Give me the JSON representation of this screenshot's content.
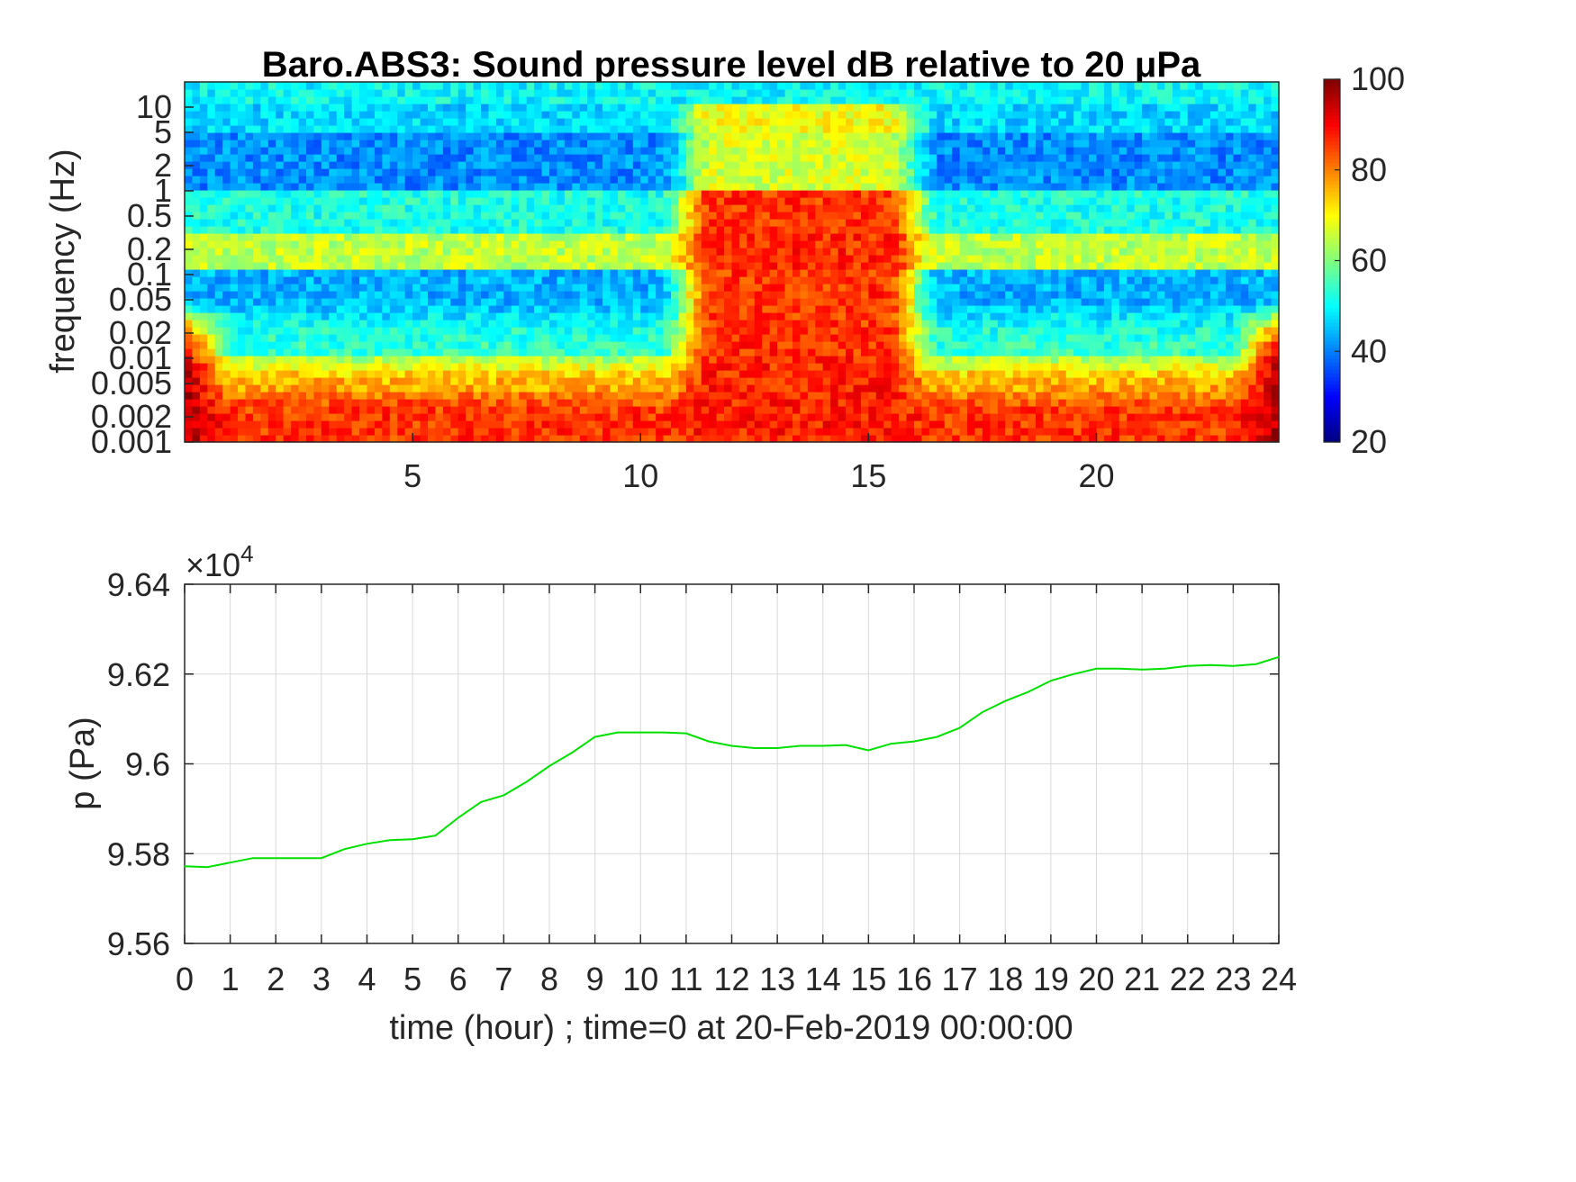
{
  "chart_data": [
    {
      "type": "heatmap",
      "title": "Baro.ABS3: Sound pressure level dB relative to 20 μPa",
      "xlabel": "",
      "ylabel": "frequency (Hz)",
      "xlim": [
        0,
        24
      ],
      "ylim": [
        0.001,
        20
      ],
      "y_scale": "log",
      "x_ticks": [
        5,
        10,
        15,
        20
      ],
      "x_tick_labels": [
        "5",
        "10",
        "15",
        "20"
      ],
      "y_ticks": [
        0.001,
        0.002,
        0.005,
        0.01,
        0.02,
        0.05,
        0.1,
        0.2,
        0.5,
        1,
        2,
        5,
        10
      ],
      "y_tick_labels": [
        "0.001",
        "0.002",
        "0.005",
        "0.01",
        "0.02",
        "0.05",
        "0.1",
        "0.2",
        "0.5",
        "1",
        "2",
        "5",
        "10"
      ],
      "colorbar": {
        "colormap": "jet",
        "range": [
          20,
          100
        ],
        "ticks": [
          20,
          40,
          60,
          80,
          100
        ],
        "tick_labels": [
          "20",
          "40",
          "60",
          "80",
          "100"
        ]
      },
      "dominant_levels_db": {
        "above_10Hz": 50,
        "1_to_5Hz": 41,
        "0.5_to_1Hz": 52,
        "0.12_to_0.3Hz": 65,
        "0.01_to_0.1Hz": 44,
        "below_0.005Hz": 86,
        "active_period_hours": [
          11,
          16
        ],
        "active_period_level_db": 88
      },
      "grid": false
    },
    {
      "type": "line",
      "title": "",
      "xlabel": "time (hour) ; time=0 at 20-Feb-2019 00:00:00",
      "ylabel": "p (Pa)",
      "y_exponent_label": "×10",
      "y_exponent_power": "4",
      "xlim": [
        0,
        24
      ],
      "ylim": [
        95600,
        96400
      ],
      "x_ticks": [
        0,
        1,
        2,
        3,
        4,
        5,
        6,
        7,
        8,
        9,
        10,
        11,
        12,
        13,
        14,
        15,
        16,
        17,
        18,
        19,
        20,
        21,
        22,
        23,
        24
      ],
      "x_tick_labels": [
        "0",
        "1",
        "2",
        "3",
        "4",
        "5",
        "6",
        "7",
        "8",
        "9",
        "10",
        "11",
        "12",
        "13",
        "14",
        "15",
        "16",
        "17",
        "18",
        "19",
        "20",
        "21",
        "22",
        "23",
        "24"
      ],
      "y_ticks": [
        95600,
        95800,
        96000,
        96200,
        96400
      ],
      "y_tick_labels": [
        "9.56",
        "9.58",
        "9.6",
        "9.62",
        "9.64"
      ],
      "grid": true,
      "series": [
        {
          "color": "#00e000",
          "x": [
            0,
            0.5,
            1,
            1.5,
            2,
            2.5,
            3,
            3.5,
            4,
            4.5,
            5,
            5.5,
            6,
            6.5,
            7,
            7.5,
            8,
            8.5,
            9,
            9.5,
            10,
            10.5,
            11,
            11.5,
            12,
            12.5,
            13,
            13.5,
            14,
            14.5,
            15,
            15.5,
            16,
            16.5,
            17,
            17.5,
            18,
            18.5,
            19,
            19.5,
            20,
            20.5,
            21,
            21.5,
            22,
            22.5,
            23,
            23.5,
            24
          ],
          "values": [
            95772,
            95770,
            95780,
            95790,
            95790,
            95790,
            95790,
            95810,
            95822,
            95830,
            95832,
            95840,
            95880,
            95915,
            95930,
            95960,
            95995,
            96025,
            96060,
            96070,
            96070,
            96070,
            96068,
            96050,
            96040,
            96035,
            96035,
            96040,
            96040,
            96042,
            96030,
            96045,
            96050,
            96060,
            96080,
            96115,
            96140,
            96160,
            96185,
            96200,
            96212,
            96212,
            96210,
            96212,
            96218,
            96220,
            96218,
            96222,
            96238
          ]
        }
      ]
    }
  ]
}
